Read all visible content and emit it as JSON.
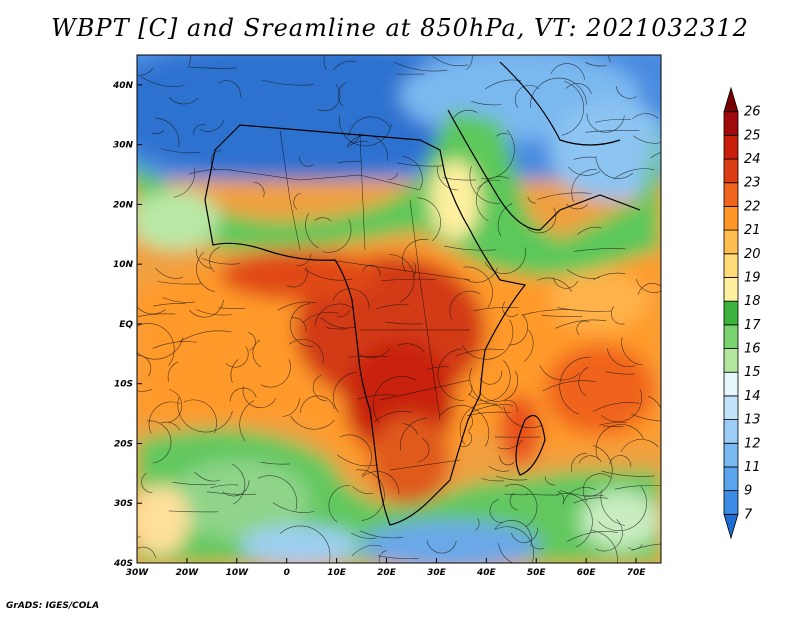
{
  "title": "WBPT [C] and Sreamline at 850hPa, VT: 2021032312",
  "footer": "GrADS: IGES/COLA",
  "map": {
    "lon_range": [
      -30,
      75
    ],
    "lat_range": [
      -40,
      45
    ],
    "lon_ticks": [
      {
        "value": -30,
        "label": "30W"
      },
      {
        "value": -20,
        "label": "20W"
      },
      {
        "value": -10,
        "label": "10W"
      },
      {
        "value": 0,
        "label": "0"
      },
      {
        "value": 10,
        "label": "10E"
      },
      {
        "value": 20,
        "label": "20E"
      },
      {
        "value": 30,
        "label": "30E"
      },
      {
        "value": 40,
        "label": "40E"
      },
      {
        "value": 50,
        "label": "50E"
      },
      {
        "value": 60,
        "label": "60E"
      },
      {
        "value": 70,
        "label": "70E"
      }
    ],
    "lat_ticks": [
      {
        "value": 40,
        "label": "40N"
      },
      {
        "value": 30,
        "label": "30N"
      },
      {
        "value": 20,
        "label": "20N"
      },
      {
        "value": 10,
        "label": "10N"
      },
      {
        "value": 0,
        "label": "EQ"
      },
      {
        "value": -10,
        "label": "10S"
      },
      {
        "value": -20,
        "label": "20S"
      },
      {
        "value": -30,
        "label": "30S"
      },
      {
        "value": -40,
        "label": "40S"
      }
    ]
  },
  "colorbar": {
    "levels": [
      "7",
      "9",
      "11",
      "12",
      "13",
      "14",
      "15",
      "16",
      "17",
      "18",
      "19",
      "20",
      "21",
      "22",
      "23",
      "24",
      "25",
      "26"
    ],
    "colors": [
      "#1e6ed2",
      "#3c8ce6",
      "#5aa5ee",
      "#78b9f2",
      "#9dcdf6",
      "#c3e3fa",
      "#e6f7fc",
      "#b4e6a0",
      "#78d26e",
      "#3cb43c",
      "#fff0a0",
      "#ffdc78",
      "#ffbe50",
      "#ff9628",
      "#f0641e",
      "#dc3c14",
      "#c81e0a",
      "#a00a0a",
      "#780000"
    ]
  }
}
